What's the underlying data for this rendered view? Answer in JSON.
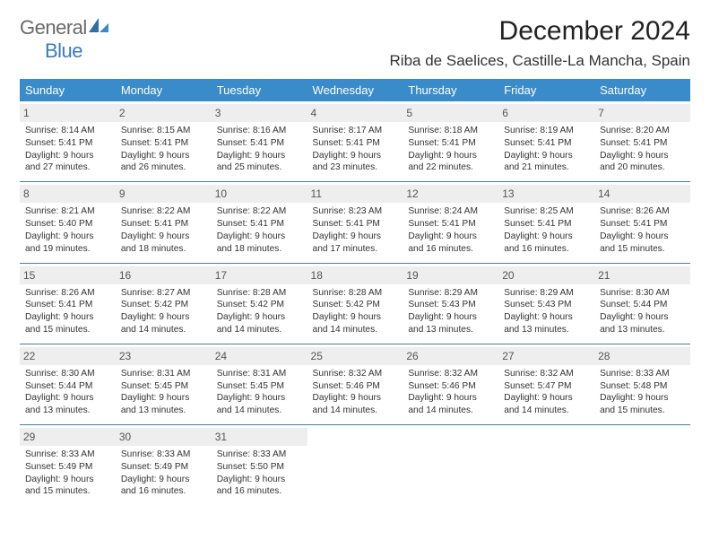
{
  "brand": {
    "general": "General",
    "blue": "Blue"
  },
  "title": "December 2024",
  "location": "Riba de Saelices, Castille-La Mancha, Spain",
  "colors": {
    "header_bg": "#3a8bc9",
    "header_text": "#ffffff",
    "daynum_bg": "#eeeeee",
    "row_border": "#4a7ba8",
    "logo_blue": "#3a7bbf",
    "logo_gray": "#6a6a6a"
  },
  "day_headers": [
    "Sunday",
    "Monday",
    "Tuesday",
    "Wednesday",
    "Thursday",
    "Friday",
    "Saturday"
  ],
  "weeks": [
    [
      {
        "n": "1",
        "sr": "8:14 AM",
        "ss": "5:41 PM",
        "dl": "9 hours and 27 minutes."
      },
      {
        "n": "2",
        "sr": "8:15 AM",
        "ss": "5:41 PM",
        "dl": "9 hours and 26 minutes."
      },
      {
        "n": "3",
        "sr": "8:16 AM",
        "ss": "5:41 PM",
        "dl": "9 hours and 25 minutes."
      },
      {
        "n": "4",
        "sr": "8:17 AM",
        "ss": "5:41 PM",
        "dl": "9 hours and 23 minutes."
      },
      {
        "n": "5",
        "sr": "8:18 AM",
        "ss": "5:41 PM",
        "dl": "9 hours and 22 minutes."
      },
      {
        "n": "6",
        "sr": "8:19 AM",
        "ss": "5:41 PM",
        "dl": "9 hours and 21 minutes."
      },
      {
        "n": "7",
        "sr": "8:20 AM",
        "ss": "5:41 PM",
        "dl": "9 hours and 20 minutes."
      }
    ],
    [
      {
        "n": "8",
        "sr": "8:21 AM",
        "ss": "5:40 PM",
        "dl": "9 hours and 19 minutes."
      },
      {
        "n": "9",
        "sr": "8:22 AM",
        "ss": "5:41 PM",
        "dl": "9 hours and 18 minutes."
      },
      {
        "n": "10",
        "sr": "8:22 AM",
        "ss": "5:41 PM",
        "dl": "9 hours and 18 minutes."
      },
      {
        "n": "11",
        "sr": "8:23 AM",
        "ss": "5:41 PM",
        "dl": "9 hours and 17 minutes."
      },
      {
        "n": "12",
        "sr": "8:24 AM",
        "ss": "5:41 PM",
        "dl": "9 hours and 16 minutes."
      },
      {
        "n": "13",
        "sr": "8:25 AM",
        "ss": "5:41 PM",
        "dl": "9 hours and 16 minutes."
      },
      {
        "n": "14",
        "sr": "8:26 AM",
        "ss": "5:41 PM",
        "dl": "9 hours and 15 minutes."
      }
    ],
    [
      {
        "n": "15",
        "sr": "8:26 AM",
        "ss": "5:41 PM",
        "dl": "9 hours and 15 minutes."
      },
      {
        "n": "16",
        "sr": "8:27 AM",
        "ss": "5:42 PM",
        "dl": "9 hours and 14 minutes."
      },
      {
        "n": "17",
        "sr": "8:28 AM",
        "ss": "5:42 PM",
        "dl": "9 hours and 14 minutes."
      },
      {
        "n": "18",
        "sr": "8:28 AM",
        "ss": "5:42 PM",
        "dl": "9 hours and 14 minutes."
      },
      {
        "n": "19",
        "sr": "8:29 AM",
        "ss": "5:43 PM",
        "dl": "9 hours and 13 minutes."
      },
      {
        "n": "20",
        "sr": "8:29 AM",
        "ss": "5:43 PM",
        "dl": "9 hours and 13 minutes."
      },
      {
        "n": "21",
        "sr": "8:30 AM",
        "ss": "5:44 PM",
        "dl": "9 hours and 13 minutes."
      }
    ],
    [
      {
        "n": "22",
        "sr": "8:30 AM",
        "ss": "5:44 PM",
        "dl": "9 hours and 13 minutes."
      },
      {
        "n": "23",
        "sr": "8:31 AM",
        "ss": "5:45 PM",
        "dl": "9 hours and 13 minutes."
      },
      {
        "n": "24",
        "sr": "8:31 AM",
        "ss": "5:45 PM",
        "dl": "9 hours and 14 minutes."
      },
      {
        "n": "25",
        "sr": "8:32 AM",
        "ss": "5:46 PM",
        "dl": "9 hours and 14 minutes."
      },
      {
        "n": "26",
        "sr": "8:32 AM",
        "ss": "5:46 PM",
        "dl": "9 hours and 14 minutes."
      },
      {
        "n": "27",
        "sr": "8:32 AM",
        "ss": "5:47 PM",
        "dl": "9 hours and 14 minutes."
      },
      {
        "n": "28",
        "sr": "8:33 AM",
        "ss": "5:48 PM",
        "dl": "9 hours and 15 minutes."
      }
    ],
    [
      {
        "n": "29",
        "sr": "8:33 AM",
        "ss": "5:49 PM",
        "dl": "9 hours and 15 minutes."
      },
      {
        "n": "30",
        "sr": "8:33 AM",
        "ss": "5:49 PM",
        "dl": "9 hours and 16 minutes."
      },
      {
        "n": "31",
        "sr": "8:33 AM",
        "ss": "5:50 PM",
        "dl": "9 hours and 16 minutes."
      },
      null,
      null,
      null,
      null
    ]
  ],
  "labels": {
    "sunrise": "Sunrise:",
    "sunset": "Sunset:",
    "daylight": "Daylight:"
  }
}
